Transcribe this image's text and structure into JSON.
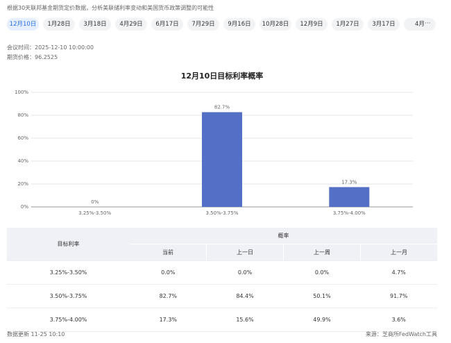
{
  "header": {
    "description": "根据30天联邦基金期货定价数据，分析美联储利率变动和美国货币政策调整的可能性"
  },
  "tabs": [
    "12月10日",
    "1月28日",
    "3月18日",
    "4月29日",
    "6月17日",
    "7月29日",
    "9月16日",
    "10月28日",
    "12月9日",
    "1月27日",
    "3月17日",
    "4月"
  ],
  "more": "···",
  "meeting": {
    "time": "会议时间：2025-12-10 10:00:00",
    "price": "期货价格：96.2525"
  },
  "chart_data": {
    "type": "bar",
    "title": "12月10日目标利率概率",
    "categories": [
      "3.25%-3.50%",
      "3.50%-3.75%",
      "3.75%-4.00%"
    ],
    "values": [
      0,
      82.7,
      17.3
    ],
    "value_labels": [
      "0%",
      "82.7%",
      "17.3%"
    ],
    "color": "#5470c6",
    "ylim": [
      0,
      100
    ],
    "yticks": [
      {
        "value": 0,
        "label": "0%"
      },
      {
        "value": 20,
        "label": "20%"
      },
      {
        "value": 40,
        "label": "40%"
      },
      {
        "value": 60,
        "label": "60%"
      },
      {
        "value": 80,
        "label": "80%"
      },
      {
        "value": 100,
        "label": "100%"
      }
    ],
    "grid": true
  },
  "table": {
    "header": [
      "目标利率",
      "概率",
      "当前",
      "上一日",
      "上一周",
      "上一月"
    ],
    "rows": [
      [
        "3.25%-3.50%",
        "0.0%",
        "0.0%",
        "0.0%",
        "4.7%"
      ],
      [
        "3.50%-3.75%",
        "82.7%",
        "84.4%",
        "50.1%",
        "91.7%"
      ],
      [
        "3.75%-4.00%",
        "17.3%",
        "15.6%",
        "49.9%",
        "3.6%"
      ]
    ]
  },
  "footer": {
    "updated": "数据更新 11-25 10:10",
    "source": "来源：芝商所FedWatch工具"
  }
}
